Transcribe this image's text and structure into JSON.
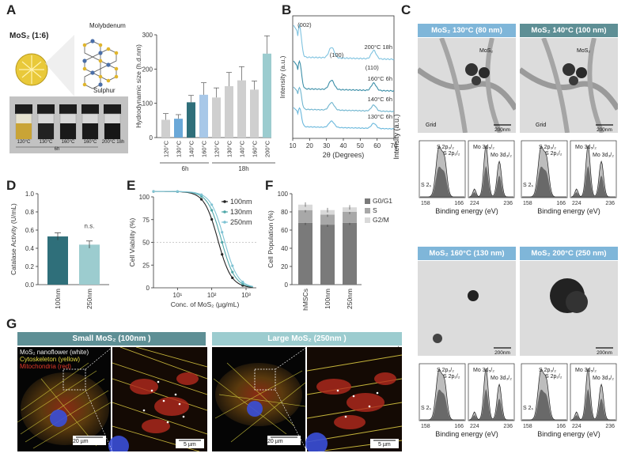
{
  "panel_labels": {
    "a": "A",
    "b": "B",
    "c": "C",
    "d": "D",
    "e": "E",
    "f": "F",
    "g": "G"
  },
  "panel_a": {
    "mos2_label": "MoS₂ (1:6)",
    "molybdenum": "Molybdenum",
    "sulphur": "Sulphur",
    "vial_labels": [
      "120°C",
      "130°C",
      "160°C",
      "160°C",
      "200°C 18h"
    ],
    "vial_group": "6h"
  },
  "chart_data": [
    {
      "id": "A",
      "type": "bar",
      "ylabel": "Hydrodynamic size (h.d.nm)",
      "ylim": [
        0,
        300
      ],
      "yticks": [
        "0",
        "100",
        "200",
        "300"
      ],
      "categories": [
        "120°C",
        "130°C",
        "140°C",
        "160°C",
        "120°C",
        "130°C",
        "140°C",
        "160°C",
        "200°C"
      ],
      "values": [
        52,
        55,
        103,
        125,
        117,
        150,
        167,
        140,
        245
      ],
      "errors": [
        18,
        12,
        20,
        35,
        28,
        40,
        40,
        25,
        52
      ],
      "colors": [
        "#cfcfcf",
        "#6aa8d8",
        "#2f6f7a",
        "#a8c8e8",
        "#cfcfcf",
        "#cfcfcf",
        "#cfcfcf",
        "#cfcfcf",
        "#9ccccf"
      ],
      "groups": [
        {
          "label": "6h"
        },
        {
          "label": "18h"
        }
      ]
    },
    {
      "id": "B",
      "type": "line",
      "xlabel": "2θ (Degrees)",
      "ylabel": "Intensity (a.u.)",
      "xlim": [
        10,
        70
      ],
      "xticks": [
        "10",
        "20",
        "30",
        "40",
        "50",
        "60",
        "70"
      ],
      "peaks": [
        "(002)",
        "(100)",
        "(110)"
      ],
      "series": [
        {
          "name": "200°C 18h"
        },
        {
          "name": "160°C 6h"
        },
        {
          "name": "140°C 6h"
        },
        {
          "name": "130°C 6h"
        }
      ]
    },
    {
      "id": "D",
      "type": "bar",
      "ylabel": "Catalase Activity (U/mL)",
      "ylim": [
        0,
        1.0
      ],
      "yticks": [
        "0.0",
        "0.2",
        "0.4",
        "0.6",
        "0.8",
        "1.0"
      ],
      "categories": [
        "100nm",
        "250nm"
      ],
      "values": [
        0.53,
        0.44
      ],
      "annotation": "n.s."
    },
    {
      "id": "E",
      "type": "line",
      "xlabel": "Conc. of MoS₂ (µg/mL)",
      "ylabel": "Cell Viability (%)",
      "ylim": [
        0,
        100
      ],
      "yticks": [
        "0",
        "25",
        "50",
        "75",
        "100"
      ],
      "xticks": [
        "10¹",
        "10²",
        "10³"
      ],
      "series": [
        {
          "name": "100nm"
        },
        {
          "name": "130nm"
        },
        {
          "name": "250nm"
        }
      ]
    },
    {
      "id": "F",
      "type": "bar",
      "ylabel": "Cell Population (%)",
      "ylim": [
        0,
        100
      ],
      "yticks": [
        "0",
        "20",
        "40",
        "60",
        "80",
        "100"
      ],
      "categories": [
        "hMSCs",
        "100nm",
        "250nm"
      ],
      "series": [
        {
          "name": "G0/G1",
          "values": [
            68,
            66,
            68
          ]
        },
        {
          "name": "S",
          "values": [
            14,
            11,
            12
          ]
        },
        {
          "name": "G2/M",
          "values": [
            6,
            5,
            5
          ]
        }
      ]
    }
  ],
  "panel_c": {
    "tem": [
      {
        "title": "MoS₂ 130°C (80 nm)",
        "scale": "200nm",
        "labels": [
          "MoS₂",
          "Grid"
        ]
      },
      {
        "title": "MoS₂ 140°C (100 nm)",
        "scale": "200nm",
        "labels": [
          "MoS₂",
          "Grid"
        ]
      },
      {
        "title": "MoS₂ 160°C (130 nm)",
        "scale": "200nm",
        "labels": []
      },
      {
        "title": "MoS₂ 200°C (250 nm)",
        "scale": "200nm",
        "labels": []
      }
    ],
    "xps_ylabel": "Intensity (a.u.)",
    "xps_xlabel": "Binding energy (eV)",
    "s_ticks": [
      "158",
      "166"
    ],
    "mo_ticks": [
      "224",
      "236"
    ],
    "s_peaks": [
      "S 2p₃/₂",
      "S 2p₁/₂",
      "S 2ₛ"
    ],
    "mo_peaks": [
      "Mo 3d₅/₂",
      "Mo 3d₃/₂"
    ]
  },
  "panel_g": {
    "small_title": "Small MoS₂ (100nm )",
    "large_title": "Large MoS₂ (250nm )",
    "legend": [
      "MoS₂ nanoflower (white)",
      "Cytoskeleton (yellow)",
      "Mitochondria (red)"
    ],
    "scale_main": "20 µm",
    "scale_zoom": "5 µm"
  },
  "colors": {
    "teal_dark": "#2f6f7a",
    "teal_light": "#9ccccf",
    "blue": "#6aa8d8",
    "tem_bar_a": "#7fb6d9",
    "tem_bar_b": "#5e8f95"
  }
}
